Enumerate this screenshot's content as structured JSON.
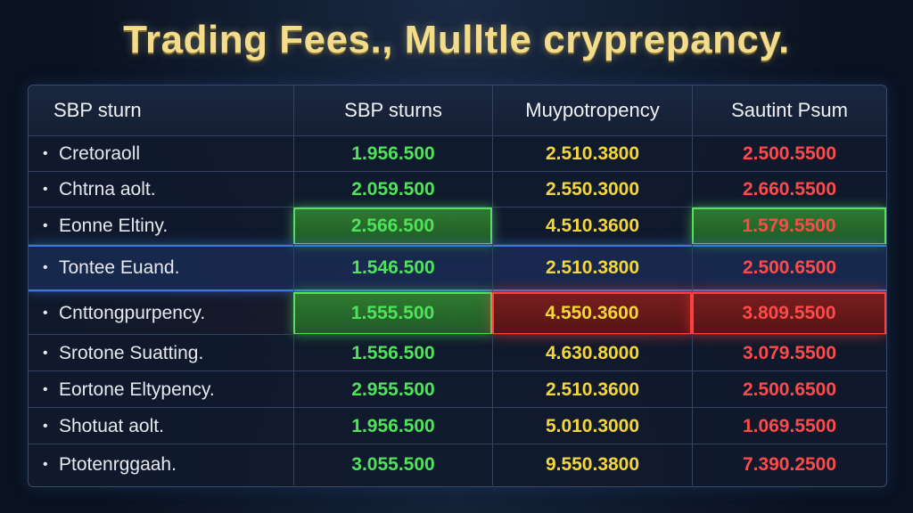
{
  "chart_data": {
    "type": "table",
    "title": "Trading Fees., Mulltle cryprepancy.",
    "columns": [
      "SBP sturn",
      "SBP sturns",
      "Muypotropency",
      "Sautint Psum"
    ],
    "rows": [
      {
        "label": "Cretoraoll",
        "values": [
          "1.956.500",
          "2.510.3800",
          "2.500.5500"
        ]
      },
      {
        "label": "Chtrna aolt.",
        "values": [
          "2.059.500",
          "2.550.3000",
          "2.660.5500"
        ]
      },
      {
        "label": "Eonne Eltiny.",
        "values": [
          "2.566.500",
          "4.510.3600",
          "1.579.5500"
        ]
      },
      {
        "label": "Tontee Euand.",
        "values": [
          "1.546.500",
          "2.510.3800",
          "2.500.6500"
        ]
      },
      {
        "label": "Cnttongpurpency.",
        "values": [
          "1.555.500",
          "4.550.3600",
          "3.809.5500"
        ]
      },
      {
        "label": "Srotone Suatting.",
        "values": [
          "1.556.500",
          "4.630.8000",
          "3.079.5500"
        ]
      },
      {
        "label": "Eortone Eltypency.",
        "values": [
          "2.955.500",
          "2.510.3600",
          "2.500.6500"
        ]
      },
      {
        "label": "Shotuat aolt.",
        "values": [
          "1.956.500",
          "5.010.3000",
          "1.069.5500"
        ]
      },
      {
        "label": "Ptotenrggaah.",
        "values": [
          "3.055.500",
          "9.550.3800",
          "7.390.2500"
        ]
      }
    ],
    "highlights": [
      {
        "row": 2,
        "col": 1,
        "color": "green"
      },
      {
        "row": 2,
        "col": 3,
        "color": "green"
      },
      {
        "row": 3,
        "col": "all",
        "color": "blue"
      },
      {
        "row": 4,
        "col": 1,
        "color": "green"
      },
      {
        "row": 4,
        "col": 2,
        "color": "red"
      },
      {
        "row": 4,
        "col": 3,
        "color": "red"
      }
    ],
    "colors": {
      "title": "#f3dc8c",
      "col1": "#4fe35a",
      "col2": "#f5d63a",
      "col3": "#ff4a4a"
    }
  }
}
